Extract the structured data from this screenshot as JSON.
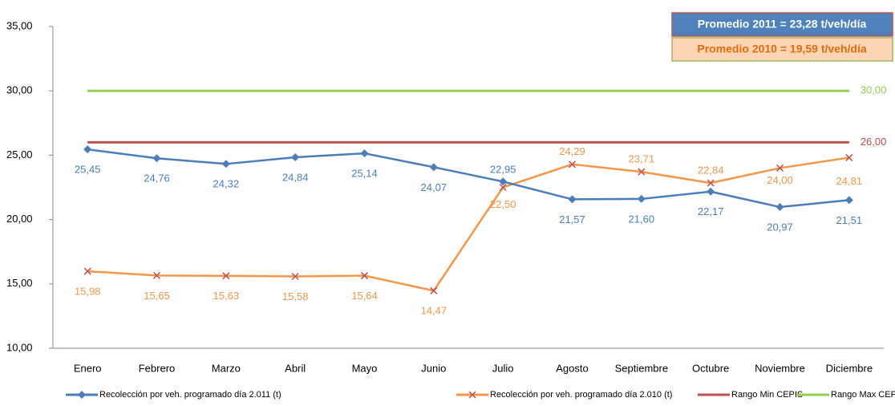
{
  "chart_data": {
    "type": "line",
    "categories": [
      "Enero",
      "Febrero",
      "Marzo",
      "Abril",
      "Mayo",
      "Junio",
      "Julio",
      "Agosto",
      "Septiembre",
      "Octubre",
      "Noviembre",
      "Diciembre"
    ],
    "series": [
      {
        "name": "Recolección por veh. programado día 2.011 (t)",
        "color": "#4a7ebb",
        "marker": "diamond",
        "values": [
          25.45,
          24.76,
          24.32,
          24.84,
          25.14,
          24.07,
          22.95,
          21.57,
          21.6,
          22.17,
          20.97,
          21.51
        ],
        "value_labels": [
          "25,45",
          "24,76",
          "24,32",
          "24,84",
          "25,14",
          "24,07",
          "22,95",
          "21,57",
          "21,60",
          "22,17",
          "20,97",
          "21,51"
        ]
      },
      {
        "name": "Recolección por veh. programado día 2.010 (t)",
        "color": "#f79646",
        "marker": "x",
        "values": [
          15.98,
          15.65,
          15.63,
          15.58,
          15.64,
          14.47,
          22.5,
          24.29,
          23.71,
          22.84,
          24.0,
          24.81
        ],
        "value_labels": [
          "15,98",
          "15,65",
          "15,63",
          "15,58",
          "15,64",
          "14,47",
          "22,50",
          "24,29",
          "23,71",
          "22,84",
          "24,00",
          "24,81"
        ]
      },
      {
        "name": "Rango Min CEPIS",
        "color": "#c0504d",
        "marker": "none",
        "values": [
          26,
          26,
          26,
          26,
          26,
          26,
          26,
          26,
          26,
          26,
          26,
          26
        ],
        "value_labels": [
          null,
          null,
          null,
          null,
          null,
          null,
          null,
          null,
          null,
          null,
          null,
          "26,00"
        ]
      },
      {
        "name": "Rango Max CEPIS",
        "color": "#92d050",
        "marker": "none",
        "values": [
          30,
          30,
          30,
          30,
          30,
          30,
          30,
          30,
          30,
          30,
          30,
          30
        ],
        "value_labels": [
          null,
          null,
          null,
          null,
          null,
          null,
          null,
          null,
          null,
          null,
          null,
          "30,00"
        ]
      }
    ],
    "ylim": [
      10,
      35
    ],
    "yticks": [
      {
        "value": 10,
        "label": "10,00"
      },
      {
        "value": 15,
        "label": "15,00"
      },
      {
        "value": 20,
        "label": "20,00"
      },
      {
        "value": 25,
        "label": "25,00"
      },
      {
        "value": 30,
        "label": "30,00"
      },
      {
        "value": 35,
        "label": "35,00"
      }
    ],
    "annotations": [
      "Promedio 2011 = 23,28 t/veh/día",
      "Promedio 2010 = 19,59 t/veh/día"
    ],
    "legend": "bottom"
  }
}
